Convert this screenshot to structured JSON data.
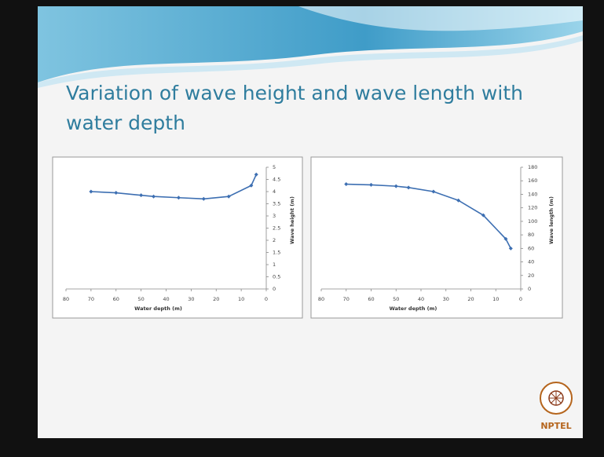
{
  "slide_title": [
    "Variation of wave height and wave length with",
    "water depth"
  ],
  "logo_text": "NPTEL",
  "chart_data": [
    {
      "type": "line",
      "x_label": "Water depth (m)",
      "y_label": "Wave height (m)",
      "x": [
        70,
        60,
        50,
        45,
        35,
        25,
        15,
        6,
        4
      ],
      "values": [
        4.0,
        3.95,
        3.85,
        3.8,
        3.75,
        3.7,
        3.8,
        4.25,
        4.7
      ],
      "color": "#3d6fb2",
      "xlim": [
        80,
        0
      ],
      "xticks": [
        80,
        70,
        60,
        50,
        40,
        30,
        20,
        10,
        0
      ],
      "ylim": [
        0,
        5
      ],
      "yticks": [
        0,
        0.5,
        1,
        1.5,
        2,
        2.5,
        3,
        3.5,
        4,
        4.5,
        5
      ]
    },
    {
      "type": "line",
      "x_label": "Water depth (m)",
      "y_label": "Wave length (m)",
      "x": [
        70,
        60,
        50,
        45,
        35,
        25,
        15,
        6,
        4
      ],
      "values": [
        155,
        154,
        152,
        150,
        144,
        131,
        109,
        74,
        60
      ],
      "color": "#3d6fb2",
      "xlim": [
        80,
        0
      ],
      "xticks": [
        80,
        70,
        60,
        50,
        40,
        30,
        20,
        10,
        0
      ],
      "ylim": [
        0,
        180
      ],
      "yticks": [
        0,
        20,
        40,
        60,
        80,
        100,
        120,
        140,
        160,
        180
      ]
    }
  ]
}
